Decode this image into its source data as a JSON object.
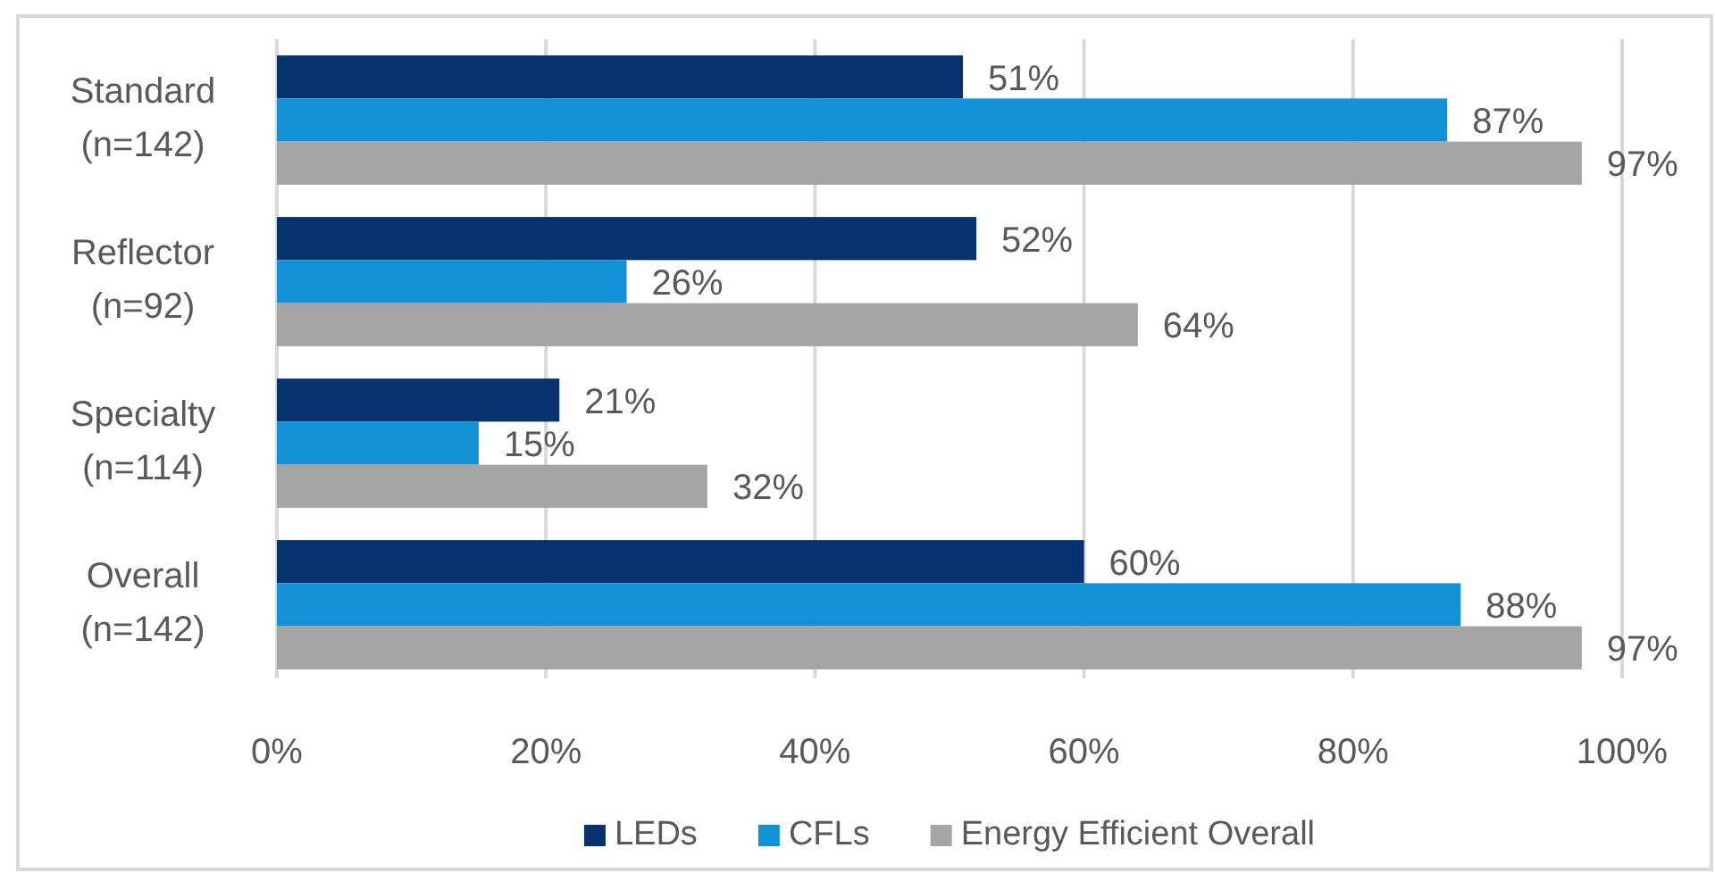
{
  "chart_data": {
    "type": "bar",
    "orientation": "horizontal",
    "categories": [
      "Standard\n(n=142)",
      "Reflector\n(n=92)",
      "Specialty\n(n=114)",
      "Overall\n(n=142)"
    ],
    "series": [
      {
        "name": "LEDs",
        "color": "#06326e",
        "values": [
          51,
          52,
          21,
          60
        ],
        "value_labels": [
          "51%",
          "52%",
          "21%",
          "60%"
        ]
      },
      {
        "name": "CFLs",
        "color": "#1192d6",
        "values": [
          87,
          26,
          15,
          88
        ],
        "value_labels": [
          "87%",
          "26%",
          "15%",
          "88%"
        ]
      },
      {
        "name": "Energy Efficient Overall",
        "color": "#a5a5a5",
        "values": [
          97,
          64,
          32,
          97
        ],
        "value_labels": [
          "97%",
          "64%",
          "32%",
          "97%"
        ]
      }
    ],
    "xlim": [
      0,
      100
    ],
    "xticks": [
      {
        "value": 0,
        "label": "0%"
      },
      {
        "value": 20,
        "label": "20%"
      },
      {
        "value": 40,
        "label": "40%"
      },
      {
        "value": 60,
        "label": "60%"
      },
      {
        "value": 80,
        "label": "80%"
      },
      {
        "value": 100,
        "label": "100%"
      }
    ],
    "grid": "x",
    "legend": "bottom"
  }
}
